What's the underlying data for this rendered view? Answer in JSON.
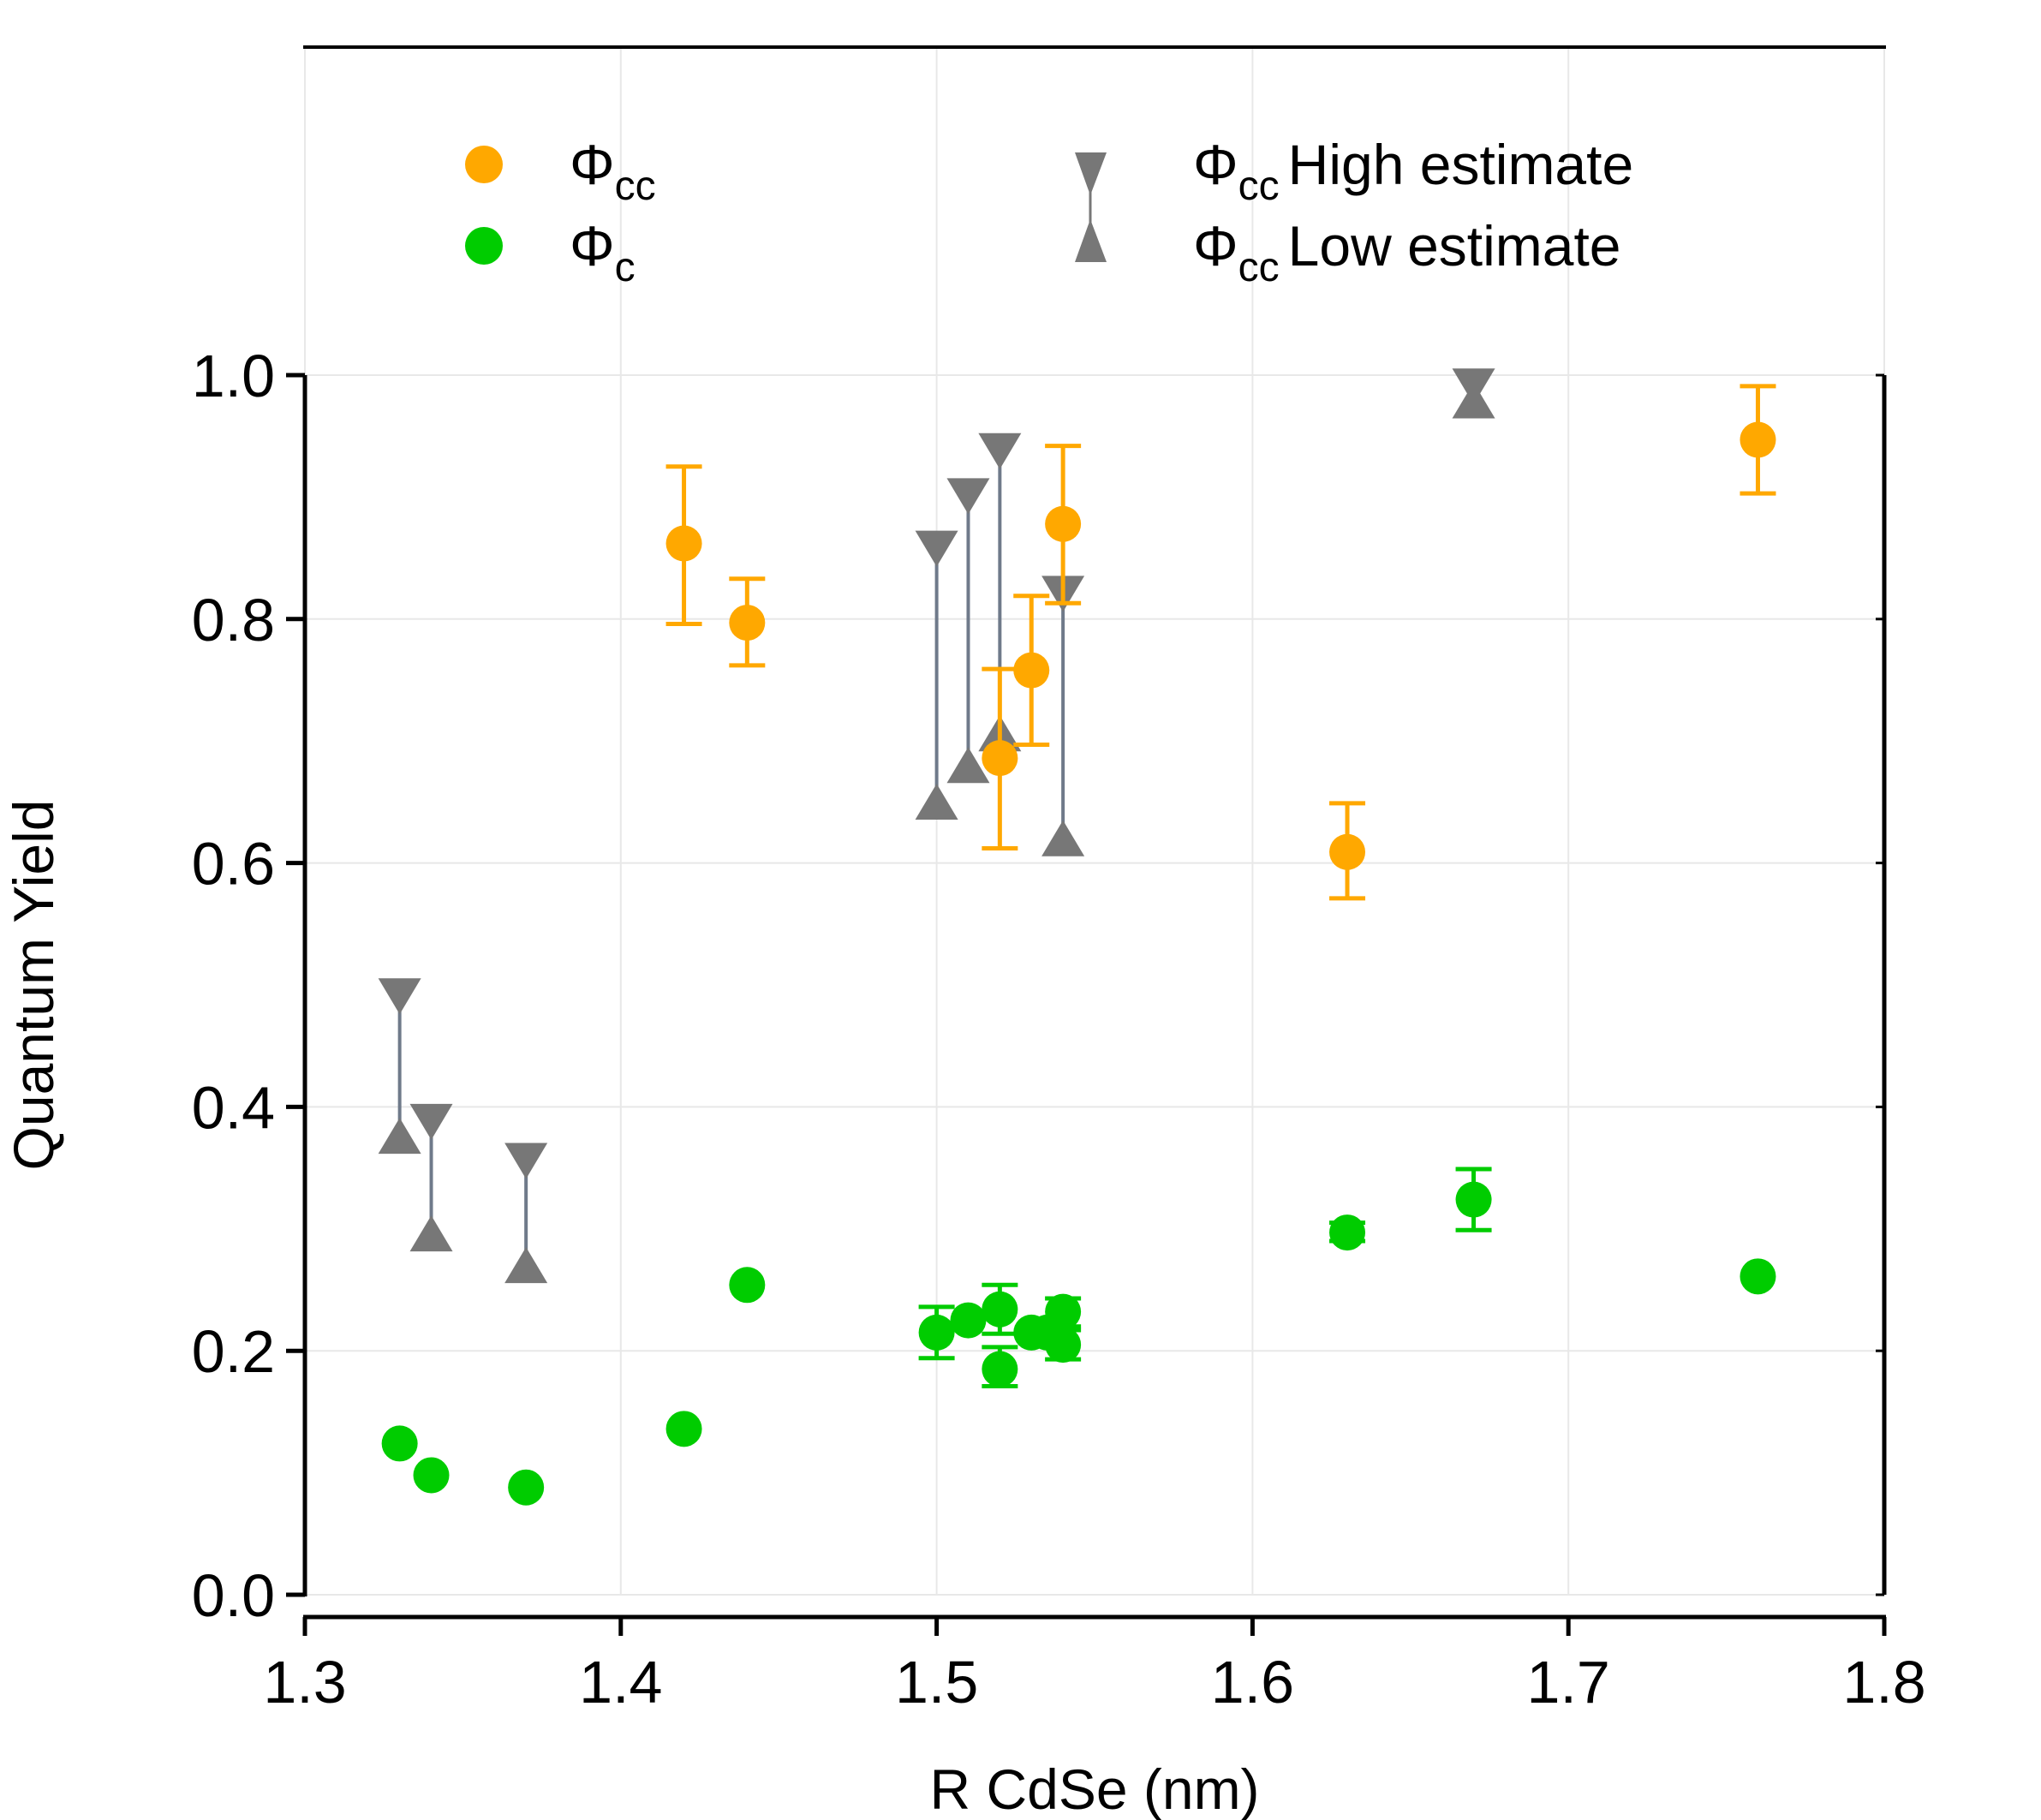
{
  "chart_data": {
    "type": "scatter",
    "xlabel": "R CdSe (nm)",
    "ylabel": "Quantum Yield",
    "xlim": [
      1.3,
      1.8
    ],
    "ylim": [
      0.0,
      1.0
    ],
    "xticks": [
      "1.3",
      "1.4",
      "1.5",
      "1.6",
      "1.7",
      "1.8"
    ],
    "yticks": [
      "0.0",
      "0.2",
      "0.4",
      "0.6",
      "0.8",
      "1.0"
    ],
    "grid": true,
    "legend_placement": "top",
    "legend": {
      "cc": {
        "symbol": "Φ",
        "sub": "cc",
        "text": ""
      },
      "c": {
        "symbol": "Φ",
        "sub": "c",
        "text": ""
      },
      "high": {
        "symbol": "Φ",
        "sub": "cc",
        "text": "High estimate"
      },
      "low": {
        "symbol": "Φ",
        "sub": "cc",
        "text": "Low estimate"
      }
    },
    "colors": {
      "cc": "#FFA800",
      "c": "#00CC00",
      "estimate": "#777777"
    },
    "series": [
      {
        "name": "Φcc",
        "color": "#FFA800",
        "points": [
          {
            "x": 1.42,
            "y": 0.862,
            "lo": 0.796,
            "hi": 0.925
          },
          {
            "x": 1.44,
            "y": 0.797,
            "lo": 0.762,
            "hi": 0.833
          },
          {
            "x": 1.52,
            "y": 0.686,
            "lo": 0.612,
            "hi": 0.759
          },
          {
            "x": 1.53,
            "y": 0.758,
            "lo": 0.697,
            "hi": 0.819
          },
          {
            "x": 1.54,
            "y": 0.878,
            "lo": 0.813,
            "hi": 0.942
          },
          {
            "x": 1.63,
            "y": 0.609,
            "lo": 0.571,
            "hi": 0.649
          },
          {
            "x": 1.76,
            "y": 0.947,
            "lo": 0.903,
            "hi": 0.991
          }
        ]
      },
      {
        "name": "Φc",
        "color": "#00CC00",
        "points": [
          {
            "x": 1.33,
            "y": 0.124
          },
          {
            "x": 1.34,
            "y": 0.098
          },
          {
            "x": 1.37,
            "y": 0.088
          },
          {
            "x": 1.42,
            "y": 0.136
          },
          {
            "x": 1.44,
            "y": 0.254
          },
          {
            "x": 1.5,
            "y": 0.215,
            "lo": 0.194,
            "hi": 0.236
          },
          {
            "x": 1.51,
            "y": 0.225
          },
          {
            "x": 1.52,
            "y": 0.234,
            "lo": 0.214,
            "hi": 0.254
          },
          {
            "x": 1.52,
            "y": 0.185,
            "lo": 0.171,
            "hi": 0.203
          },
          {
            "x": 1.53,
            "y": 0.215
          },
          {
            "x": 1.535,
            "y": 0.215
          },
          {
            "x": 1.54,
            "y": 0.232,
            "lo": 0.22,
            "hi": 0.243
          },
          {
            "x": 1.54,
            "y": 0.205,
            "lo": 0.193,
            "hi": 0.217
          },
          {
            "x": 1.63,
            "y": 0.297,
            "lo": 0.29,
            "hi": 0.305
          },
          {
            "x": 1.67,
            "y": 0.324,
            "lo": 0.299,
            "hi": 0.349
          },
          {
            "x": 1.76,
            "y": 0.261
          }
        ]
      },
      {
        "name": "Φcc High / Low estimate",
        "color": "#777777",
        "ranges": [
          {
            "x": 1.33,
            "high": 0.49,
            "low": 0.377
          },
          {
            "x": 1.34,
            "high": 0.387,
            "low": 0.297
          },
          {
            "x": 1.37,
            "high": 0.355,
            "low": 0.271
          },
          {
            "x": 1.5,
            "high": 0.857,
            "low": 0.651
          },
          {
            "x": 1.51,
            "high": 0.9,
            "low": 0.681
          },
          {
            "x": 1.52,
            "high": 0.937,
            "low": 0.707
          },
          {
            "x": 1.54,
            "high": 0.82,
            "low": 0.621
          },
          {
            "x": 1.67,
            "high": 0.99,
            "low": 0.98
          }
        ]
      }
    ]
  }
}
